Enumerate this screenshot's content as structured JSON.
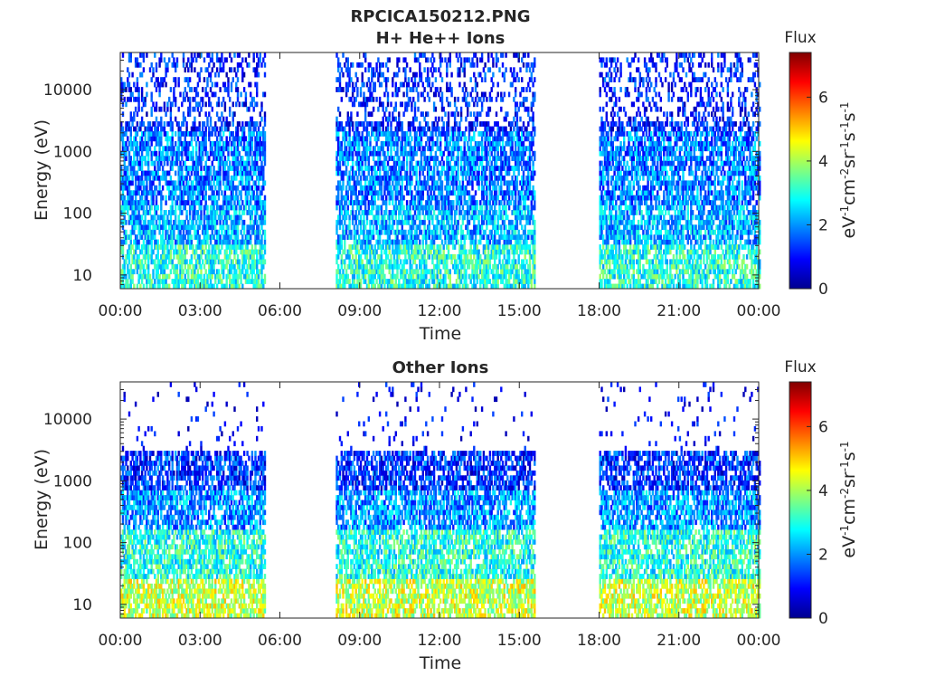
{
  "figure": {
    "title_line1": "RPCICA150212.PNG"
  },
  "chart_data": [
    {
      "type": "heatmap",
      "title": "H+ He++ Ions",
      "xlabel": "Time",
      "ylabel": "Energy (eV)",
      "yscale": "log",
      "ylim": [
        6,
        40000
      ],
      "xlim_hours": [
        0,
        24
      ],
      "x_ticks": [
        "00:00",
        "03:00",
        "06:00",
        "09:00",
        "12:00",
        "15:00",
        "18:00",
        "21:00",
        "00:00"
      ],
      "y_ticks": [
        {
          "value": 10,
          "label": "10"
        },
        {
          "value": 100,
          "label": "100"
        },
        {
          "value": 1000,
          "label": "1000"
        },
        {
          "value": 10000,
          "label": "10000"
        }
      ],
      "data_segments_hours": [
        [
          0,
          5.4
        ],
        [
          8.1,
          15.6
        ],
        [
          18.0,
          24.0
        ]
      ],
      "colorbar": {
        "title": "Flux",
        "label": "eV-1cm-2sr-1s-1",
        "range": [
          0,
          7.4
        ],
        "ticks": [
          "0",
          "2",
          "4",
          "6"
        ],
        "colormap": "jet"
      },
      "grid": false
    },
    {
      "type": "heatmap",
      "title": "Other Ions",
      "xlabel": "Time",
      "ylabel": "Energy (eV)",
      "yscale": "log",
      "ylim": [
        6,
        40000
      ],
      "xlim_hours": [
        0,
        24
      ],
      "x_ticks": [
        "00:00",
        "03:00",
        "06:00",
        "09:00",
        "12:00",
        "15:00",
        "18:00",
        "21:00",
        "00:00"
      ],
      "y_ticks": [
        {
          "value": 10,
          "label": "10"
        },
        {
          "value": 100,
          "label": "100"
        },
        {
          "value": 1000,
          "label": "1000"
        },
        {
          "value": 10000,
          "label": "10000"
        }
      ],
      "data_segments_hours": [
        [
          0,
          5.4
        ],
        [
          8.1,
          15.6
        ],
        [
          18.0,
          24.0
        ]
      ],
      "colorbar": {
        "title": "Flux",
        "label": "eV-1cm-2sr-1s-1",
        "range": [
          0,
          7.4
        ],
        "ticks": [
          "0",
          "2",
          "4",
          "6"
        ],
        "colormap": "jet"
      },
      "grid": false
    }
  ]
}
